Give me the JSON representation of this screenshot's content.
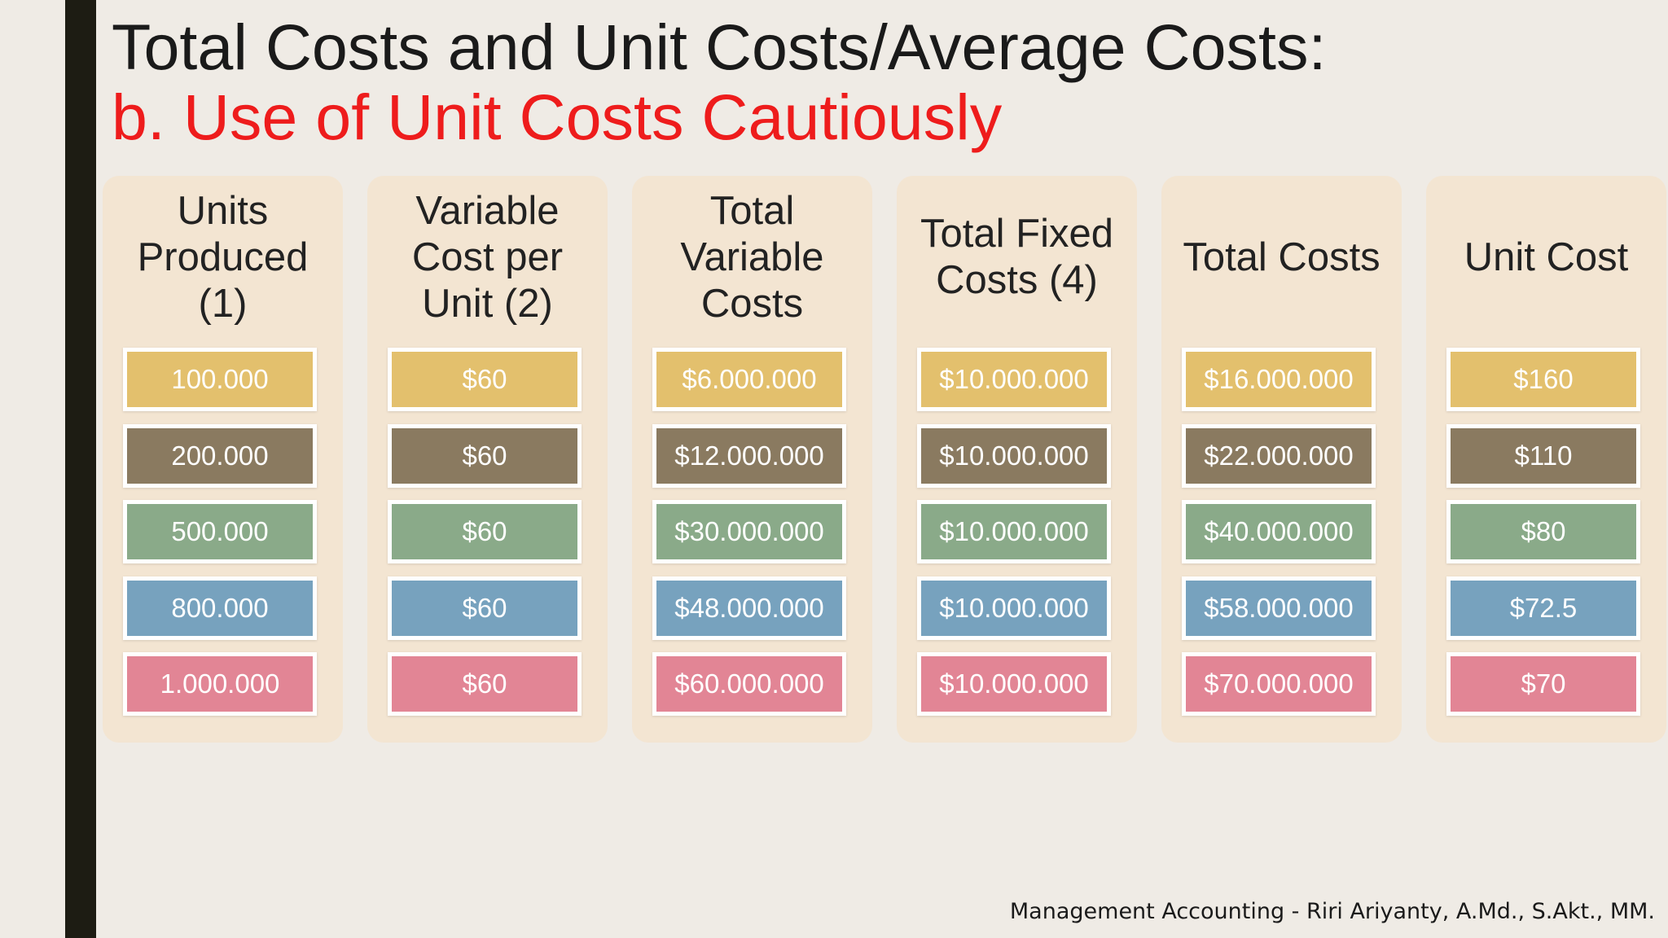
{
  "title": "Total Costs and Unit Costs/Average Costs:",
  "subtitle": "b. Use of Unit Costs Cautiously",
  "footer": "Management Accounting - Riri Ariyanty, A.Md., S.Akt., MM.",
  "colors": {
    "background": "#efebe5",
    "left_bar": "#1d1c13",
    "title_text": "#1a1a1a",
    "subtitle_text": "#ee1c1c",
    "column_bg": "#f3e5d2",
    "row_colors": [
      "#e3c06d",
      "#8a7a60",
      "#8aaa89",
      "#77a2be",
      "#e28595"
    ]
  },
  "table": {
    "columns": [
      {
        "header": "Units\nProduced\n(1)",
        "cells": [
          "100.000",
          "200.000",
          "500.000",
          "800.000",
          "1.000.000"
        ]
      },
      {
        "header": "Variable\nCost per\nUnit (2)",
        "cells": [
          "$60",
          "$60",
          "$60",
          "$60",
          "$60"
        ]
      },
      {
        "header": "Total\nVariable\nCosts",
        "cells": [
          "$6.000.000",
          "$12.000.000",
          "$30.000.000",
          "$48.000.000",
          "$60.000.000"
        ]
      },
      {
        "header": "Total Fixed\nCosts (4)",
        "cells": [
          "$10.000.000",
          "$10.000.000",
          "$10.000.000",
          "$10.000.000",
          "$10.000.000"
        ]
      },
      {
        "header": "Total Costs",
        "cells": [
          "$16.000.000",
          "$22.000.000",
          "$40.000.000",
          "$58.000.000",
          "$70.000.000"
        ]
      },
      {
        "header": "Unit Cost",
        "cells": [
          "$160",
          "$110",
          "$80",
          "$72.5",
          "$70"
        ]
      }
    ]
  }
}
